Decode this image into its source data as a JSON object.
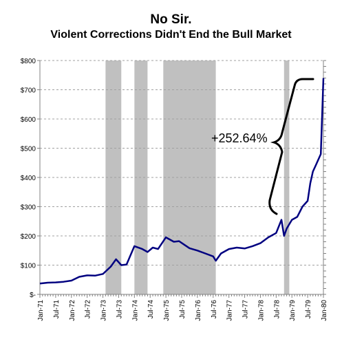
{
  "chart_data": {
    "type": "line",
    "title": "No Sir.",
    "subtitle": "Violent Corrections Didn't End the Bull Market",
    "xlabel": "",
    "ylabel": "",
    "ylim": [
      0,
      800
    ],
    "yticks": [
      0,
      100,
      200,
      300,
      400,
      500,
      600,
      700,
      800
    ],
    "ytick_labels": [
      "$-",
      "$100",
      "$200",
      "$300",
      "$400",
      "$500",
      "$600",
      "$700",
      "$800"
    ],
    "x_range": [
      "1971-01",
      "1980-01"
    ],
    "xtick_labels": [
      "Jan-71",
      "Jul-71",
      "Jan-72",
      "Jul-72",
      "Jan-73",
      "Jul-73",
      "Jan-74",
      "Jul-74",
      "Jan-75",
      "Jul-75",
      "Jan-76",
      "Jul-76",
      "Jan-77",
      "Jul-77",
      "Jan-78",
      "Jul-78",
      "Jan-79",
      "Jul-79",
      "Jan-80"
    ],
    "grid": true,
    "shaded_periods": [
      {
        "start": "1973-02",
        "end": "1973-08"
      },
      {
        "start": "1974-01",
        "end": "1974-06"
      },
      {
        "start": "1974-12",
        "end": "1976-08"
      },
      {
        "start": "1978-10",
        "end": "1978-12"
      }
    ],
    "annotation": "+252.64%",
    "series": [
      {
        "color": "#000080",
        "x": [
          "1971-01",
          "1971-04",
          "1971-07",
          "1971-10",
          "1972-01",
          "1972-04",
          "1972-07",
          "1972-10",
          "1973-01",
          "1973-04",
          "1973-06",
          "1973-08",
          "1973-10",
          "1974-01",
          "1974-04",
          "1974-06",
          "1974-08",
          "1974-10",
          "1975-01",
          "1975-04",
          "1975-06",
          "1975-08",
          "1975-10",
          "1976-01",
          "1976-04",
          "1976-07",
          "1976-08",
          "1976-10",
          "1977-01",
          "1977-04",
          "1977-07",
          "1977-10",
          "1978-01",
          "1978-04",
          "1978-07",
          "1978-09",
          "1978-10",
          "1978-11",
          "1979-01",
          "1979-03",
          "1979-05",
          "1979-07",
          "1979-08",
          "1979-09",
          "1979-10",
          "1979-11",
          "1979-12",
          "1980-01"
        ],
        "values": [
          37,
          40,
          41,
          43,
          47,
          60,
          65,
          64,
          70,
          95,
          120,
          100,
          102,
          165,
          155,
          145,
          160,
          155,
          195,
          180,
          182,
          170,
          158,
          150,
          140,
          130,
          115,
          140,
          155,
          160,
          157,
          165,
          175,
          195,
          210,
          255,
          200,
          225,
          255,
          265,
          300,
          320,
          380,
          420,
          440,
          460,
          480,
          740
        ]
      }
    ]
  }
}
